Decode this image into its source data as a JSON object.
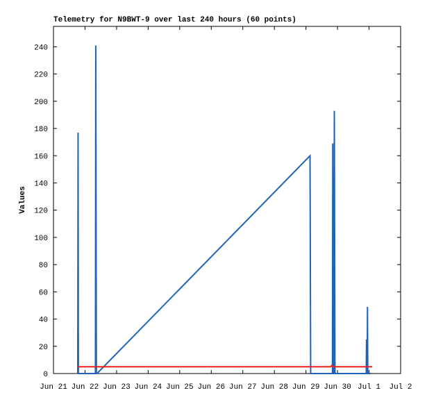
{
  "chart_data": {
    "type": "line",
    "title": "Telemetry for N9BWT-9 over last 240 hours (60 points)",
    "y_label": "Values",
    "xlim": [
      0,
      11
    ],
    "xticks": [
      {
        "value": 0,
        "label": "Jun 21"
      },
      {
        "value": 1,
        "label": "Jun 22"
      },
      {
        "value": 2,
        "label": "Jun 23"
      },
      {
        "value": 3,
        "label": "Jun 24"
      },
      {
        "value": 4,
        "label": "Jun 25"
      },
      {
        "value": 5,
        "label": "Jun 26"
      },
      {
        "value": 6,
        "label": "Jun 27"
      },
      {
        "value": 7,
        "label": "Jun 28"
      },
      {
        "value": 8,
        "label": "Jun 29"
      },
      {
        "value": 9,
        "label": "Jun 30"
      },
      {
        "value": 10,
        "label": "Jul 1"
      },
      {
        "value": 11,
        "label": "Jul 2"
      }
    ],
    "ylim": [
      0,
      255
    ],
    "yticks": [
      0,
      20,
      40,
      60,
      80,
      100,
      120,
      140,
      160,
      180,
      200,
      220,
      240
    ],
    "grid": false,
    "series": [
      {
        "color": "#1f63b8",
        "x": [
          0.77,
          0.78,
          0.79,
          1.33,
          1.34,
          1.36,
          1.38,
          8.13,
          8.15,
          8.84,
          8.85,
          8.87,
          8.89,
          8.9,
          8.92,
          9.91,
          9.92,
          9.93,
          9.94,
          9.95,
          9.96,
          10.05
        ],
        "values": [
          0,
          177,
          0,
          0,
          241,
          0,
          0,
          160,
          0,
          0,
          169,
          0,
          0,
          193,
          0,
          0,
          25,
          0,
          0,
          49,
          0,
          0
        ]
      },
      {
        "color": "#e8221b",
        "x": [
          0.77,
          8.78,
          8.82,
          8.86,
          10.1
        ],
        "values": [
          5,
          5,
          6,
          5,
          5
        ]
      }
    ]
  }
}
